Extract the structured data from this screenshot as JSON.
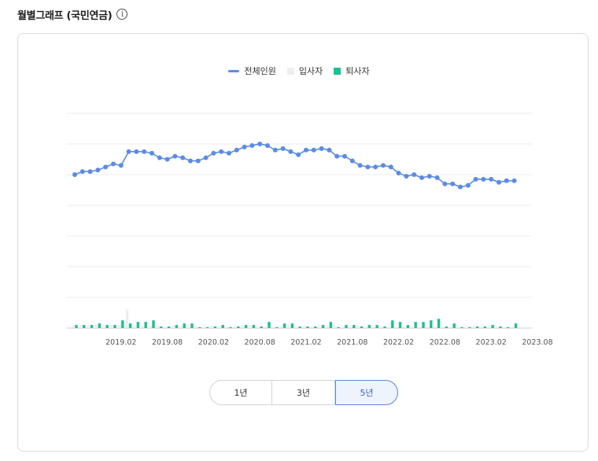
{
  "header": {
    "title": "월별그래프 (국민연금)",
    "info_icon": "i"
  },
  "colors": {
    "total": "#5b8ce5",
    "join": "#eeeeee",
    "leave": "#1dbf93",
    "grid": "#eeeeee",
    "axis": "#cccccc"
  },
  "period_buttons": [
    {
      "label": "1년",
      "active": false
    },
    {
      "label": "3년",
      "active": false
    },
    {
      "label": "5년",
      "active": true
    }
  ],
  "chart_data": {
    "type": "line",
    "title": "",
    "legend": [
      "전체인원",
      "입사자",
      "퇴사자"
    ],
    "x_tick_labels": [
      "2019.02",
      "2019.08",
      "2020.02",
      "2020.08",
      "2021.02",
      "2021.08",
      "2022.02",
      "2022.08",
      "2023.02",
      "2023.08"
    ],
    "x_start": "2018.08",
    "x_end": "2023.08",
    "ylim": [
      0,
      7
    ],
    "series": [
      {
        "name": "전체인원",
        "type": "line",
        "values": [
          5.0,
          5.1,
          5.1,
          5.15,
          5.25,
          5.35,
          5.3,
          5.75,
          5.75,
          5.75,
          5.7,
          5.55,
          5.5,
          5.6,
          5.55,
          5.45,
          5.45,
          5.55,
          5.7,
          5.75,
          5.7,
          5.8,
          5.9,
          5.95,
          6.0,
          5.95,
          5.8,
          5.85,
          5.75,
          5.65,
          5.8,
          5.8,
          5.85,
          5.8,
          5.6,
          5.6,
          5.45,
          5.3,
          5.25,
          5.25,
          5.3,
          5.25,
          5.05,
          4.95,
          5.0,
          4.9,
          4.95,
          4.9,
          4.7,
          4.7,
          4.6,
          4.65,
          4.85,
          4.85,
          4.85,
          4.75,
          4.8,
          4.8
        ]
      },
      {
        "name": "입사자",
        "type": "bar",
        "values": [
          0.08,
          0.1,
          0.08,
          0.1,
          0.08,
          0.1,
          0.1,
          0.6,
          0.1,
          0.08,
          0.08,
          0.08,
          0.05,
          0.08,
          0.05,
          0.05,
          0.05,
          0.05,
          0.08,
          0.08,
          0.05,
          0.08,
          0.08,
          0.08,
          0.05,
          0.05,
          0.05,
          0.08,
          0.08,
          0.05,
          0.08,
          0.05,
          0.08,
          0.08,
          0.08,
          0.05,
          0.05,
          0.08,
          0.05,
          0.05,
          0.05,
          0.05,
          0.05,
          0.05,
          0.05,
          0.05,
          0.05,
          0.05,
          0.05,
          0.05,
          0.05,
          0.05,
          0.08,
          0.05,
          0.05,
          0.05,
          0.05,
          0.05
        ]
      },
      {
        "name": "퇴사자",
        "type": "bar",
        "values": [
          0.1,
          0.1,
          0.1,
          0.15,
          0.1,
          0.1,
          0.25,
          0.15,
          0.2,
          0.2,
          0.25,
          0.05,
          0.05,
          0.1,
          0.15,
          0.15,
          0.03,
          0.03,
          0.05,
          0.1,
          0.03,
          0.05,
          0.1,
          0.1,
          0.05,
          0.2,
          0.03,
          0.15,
          0.15,
          0.05,
          0.05,
          0.05,
          0.1,
          0.2,
          0.03,
          0.1,
          0.1,
          0.05,
          0.1,
          0.1,
          0.05,
          0.25,
          0.2,
          0.1,
          0.2,
          0.2,
          0.25,
          0.3,
          0.05,
          0.15,
          0.03,
          0.03,
          0.05,
          0.05,
          0.1,
          0.05,
          0.03,
          0.15
        ]
      }
    ]
  }
}
